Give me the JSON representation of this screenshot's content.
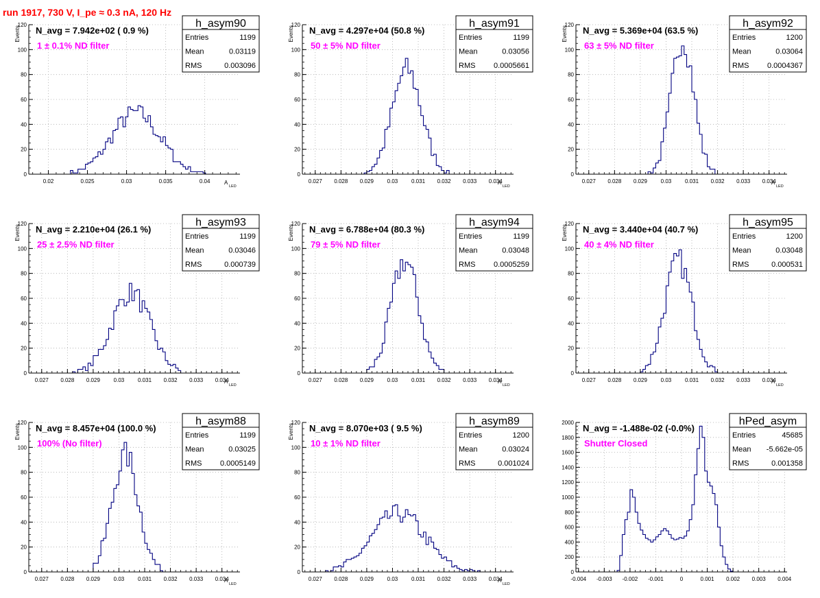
{
  "header": {
    "title": "run 1917,   730 V, I_pe ≈ 0.3 nA, 120 Hz"
  },
  "colors": {
    "title": "#ff0000",
    "annotation": "#ff00ff",
    "histogram": "#000080",
    "grid": "#aaaaaa"
  },
  "stats_labels": {
    "entries": "Entries",
    "mean": "Mean",
    "rms": "RMS"
  },
  "chart_data": [
    {
      "type": "bar",
      "name": "h_asym90",
      "navg_label": "N_avg = 7.942e+02 ( 0.9 %)",
      "annotation": "1 ± 0.1% ND filter",
      "stats": {
        "entries": "1199",
        "mean": "0.03119",
        "rms": "0.003096"
      },
      "ylabel": "Events",
      "xlabel": "A",
      "xlabel_sub": "LED",
      "xlim": [
        0.0175,
        0.0445
      ],
      "ylim": [
        0,
        120
      ],
      "xticks": [
        0.02,
        0.025,
        0.03,
        0.035,
        0.04
      ],
      "xtick_labels": [
        "0.02",
        "0.025",
        "0.03",
        "0.035",
        "0.04"
      ],
      "yticks": [
        0,
        20,
        40,
        60,
        80,
        100,
        120
      ],
      "ytick_labels": [
        "0",
        "20",
        "40",
        "60",
        "80",
        "100",
        "120"
      ],
      "grid": true,
      "hist": {
        "mean": 0.03119,
        "sigma": 0.0031,
        "entries": 1199,
        "bin_width": 0.00032,
        "lo": 0.0225,
        "hi": 0.0405
      }
    },
    {
      "type": "bar",
      "name": "h_asym91",
      "navg_label": "N_avg = 4.297e+04 (50.8 %)",
      "annotation": "50 ± 5% ND filter",
      "stats": {
        "entries": "1199",
        "mean": "0.03056",
        "rms": "0.0005661"
      },
      "ylabel": "Events",
      "xlabel": "A",
      "xlabel_sub": "LED",
      "xlim": [
        0.0265,
        0.0347
      ],
      "ylim": [
        0,
        120
      ],
      "xticks": [
        0.027,
        0.028,
        0.029,
        0.03,
        0.031,
        0.032,
        0.033,
        0.034
      ],
      "xtick_labels": [
        "0.027",
        "0.028",
        "0.029",
        "0.03",
        "0.031",
        "0.032",
        "0.033",
        "0.034"
      ],
      "yticks": [
        0,
        20,
        40,
        60,
        80,
        100,
        120
      ],
      "ytick_labels": [
        "0",
        "20",
        "40",
        "60",
        "80",
        "100",
        "120"
      ],
      "grid": true,
      "hist": {
        "mean": 0.03056,
        "sigma": 0.00057,
        "entries": 1199,
        "bin_width": 0.0001,
        "lo": 0.0289,
        "hi": 0.0322
      }
    },
    {
      "type": "bar",
      "name": "h_asym92",
      "navg_label": "N_avg = 5.369e+04 (63.5 %)",
      "annotation": "63 ± 5% ND filter",
      "stats": {
        "entries": "1200",
        "mean": "0.03064",
        "rms": "0.0004367"
      },
      "ylabel": "Events",
      "xlabel": "A",
      "xlabel_sub": "LED",
      "xlim": [
        0.0265,
        0.0347
      ],
      "ylim": [
        0,
        120
      ],
      "xticks": [
        0.027,
        0.028,
        0.029,
        0.03,
        0.031,
        0.032,
        0.033,
        0.034
      ],
      "xtick_labels": [
        "0.027",
        "0.028",
        "0.029",
        "0.03",
        "0.031",
        "0.032",
        "0.033",
        "0.034"
      ],
      "yticks": [
        0,
        20,
        40,
        60,
        80,
        100,
        120
      ],
      "ytick_labels": [
        "0",
        "20",
        "40",
        "60",
        "80",
        "100",
        "120"
      ],
      "grid": true,
      "hist": {
        "mean": 0.03064,
        "sigma": 0.00044,
        "entries": 1200,
        "bin_width": 0.0001,
        "lo": 0.0292,
        "hi": 0.032
      }
    },
    {
      "type": "bar",
      "name": "h_asym93",
      "navg_label": "N_avg = 2.210e+04 (26.1 %)",
      "annotation": "25 ± 2.5% ND filter",
      "stats": {
        "entries": "1199",
        "mean": "0.03046",
        "rms": "0.000739"
      },
      "ylabel": "Events",
      "xlabel": "A",
      "xlabel_sub": "LED",
      "xlim": [
        0.0265,
        0.0347
      ],
      "ylim": [
        0,
        120
      ],
      "xticks": [
        0.027,
        0.028,
        0.029,
        0.03,
        0.031,
        0.032,
        0.033,
        0.034
      ],
      "xtick_labels": [
        "0.027",
        "0.028",
        "0.029",
        "0.03",
        "0.031",
        "0.032",
        "0.033",
        "0.034"
      ],
      "yticks": [
        0,
        20,
        40,
        60,
        80,
        100,
        120
      ],
      "ytick_labels": [
        "0",
        "20",
        "40",
        "60",
        "80",
        "100",
        "120"
      ],
      "grid": true,
      "hist": {
        "mean": 0.03046,
        "sigma": 0.00074,
        "entries": 1199,
        "bin_width": 0.0001,
        "lo": 0.0282,
        "hi": 0.0324
      }
    },
    {
      "type": "bar",
      "name": "h_asym94",
      "navg_label": "N_avg = 6.788e+04 (80.3 %)",
      "annotation": "79 ± 5% ND filter",
      "stats": {
        "entries": "1199",
        "mean": "0.03048",
        "rms": "0.0005259"
      },
      "ylabel": "Events",
      "xlabel": "A",
      "xlabel_sub": "LED",
      "xlim": [
        0.0265,
        0.0347
      ],
      "ylim": [
        0,
        120
      ],
      "xticks": [
        0.027,
        0.028,
        0.029,
        0.03,
        0.031,
        0.032,
        0.033,
        0.034
      ],
      "xtick_labels": [
        "0.027",
        "0.028",
        "0.029",
        "0.03",
        "0.031",
        "0.032",
        "0.033",
        "0.034"
      ],
      "yticks": [
        0,
        20,
        40,
        60,
        80,
        100,
        120
      ],
      "ytick_labels": [
        "0",
        "20",
        "40",
        "60",
        "80",
        "100",
        "120"
      ],
      "grid": true,
      "hist": {
        "mean": 0.03048,
        "sigma": 0.00053,
        "entries": 1199,
        "bin_width": 0.0001,
        "lo": 0.029,
        "hi": 0.032
      }
    },
    {
      "type": "bar",
      "name": "h_asym95",
      "navg_label": "N_avg = 3.440e+04 (40.7 %)",
      "annotation": "40 ± 4% ND filter",
      "stats": {
        "entries": "1200",
        "mean": "0.03048",
        "rms": "0.000531"
      },
      "ylabel": "Events",
      "xlabel": "A",
      "xlabel_sub": "LED",
      "xlim": [
        0.0265,
        0.0347
      ],
      "ylim": [
        0,
        120
      ],
      "xticks": [
        0.027,
        0.028,
        0.029,
        0.03,
        0.031,
        0.032,
        0.033,
        0.034
      ],
      "xtick_labels": [
        "0.027",
        "0.028",
        "0.029",
        "0.03",
        "0.031",
        "0.032",
        "0.033",
        "0.034"
      ],
      "yticks": [
        0,
        20,
        40,
        60,
        80,
        100,
        120
      ],
      "ytick_labels": [
        "0",
        "20",
        "40",
        "60",
        "80",
        "100",
        "120"
      ],
      "grid": true,
      "hist": {
        "mean": 0.03048,
        "sigma": 0.00053,
        "entries": 1200,
        "bin_width": 0.0001,
        "lo": 0.029,
        "hi": 0.0322
      }
    },
    {
      "type": "bar",
      "name": "h_asym88",
      "navg_label": "N_avg = 8.457e+04 (100.0 %)",
      "annotation": "100% (No filter)",
      "stats": {
        "entries": "1199",
        "mean": "0.03025",
        "rms": "0.0005149"
      },
      "ylabel": "Events",
      "xlabel": "A",
      "xlabel_sub": "LED",
      "xlim": [
        0.0265,
        0.0347
      ],
      "ylim": [
        0,
        120
      ],
      "xticks": [
        0.027,
        0.028,
        0.029,
        0.03,
        0.031,
        0.032,
        0.033,
        0.034
      ],
      "xtick_labels": [
        "0.027",
        "0.028",
        "0.029",
        "0.03",
        "0.031",
        "0.032",
        "0.033",
        "0.034"
      ],
      "yticks": [
        0,
        20,
        40,
        60,
        80,
        100,
        120
      ],
      "ytick_labels": [
        "0",
        "20",
        "40",
        "60",
        "80",
        "100",
        "120"
      ],
      "grid": true,
      "hist": {
        "mean": 0.03025,
        "sigma": 0.00051,
        "entries": 1199,
        "bin_width": 0.0001,
        "lo": 0.029,
        "hi": 0.0317
      }
    },
    {
      "type": "bar",
      "name": "h_asym89",
      "navg_label": "N_avg = 8.070e+03 ( 9.5 %)",
      "annotation": "10 ± 1% ND filter",
      "stats": {
        "entries": "1200",
        "mean": "0.03024",
        "rms": "0.001024"
      },
      "ylabel": "Events",
      "xlabel": "A",
      "xlabel_sub": "LED",
      "xlim": [
        0.0265,
        0.0347
      ],
      "ylim": [
        0,
        120
      ],
      "xticks": [
        0.027,
        0.028,
        0.029,
        0.03,
        0.031,
        0.032,
        0.033,
        0.034
      ],
      "xtick_labels": [
        "0.027",
        "0.028",
        "0.029",
        "0.03",
        "0.031",
        "0.032",
        "0.033",
        "0.034"
      ],
      "yticks": [
        0,
        20,
        40,
        60,
        80,
        100,
        120
      ],
      "ytick_labels": [
        "0",
        "20",
        "40",
        "60",
        "80",
        "100",
        "120"
      ],
      "grid": true,
      "hist": {
        "mean": 0.03024,
        "sigma": 0.00102,
        "entries": 1200,
        "bin_width": 0.0001,
        "lo": 0.027,
        "hi": 0.0334
      }
    },
    {
      "type": "bar",
      "name": "hPed_asym",
      "navg_label": "N_avg = -1.488e-02 (-0.0%)",
      "annotation": "Shutter Closed",
      "stats": {
        "entries": "45685",
        "mean": "-5.662e-05",
        "rms": "0.001358"
      },
      "ylabel": "",
      "xlabel": "",
      "xlabel_sub": "",
      "xlim": [
        -0.0041,
        0.0041
      ],
      "ylim": [
        0,
        2000
      ],
      "xticks": [
        -0.004,
        -0.003,
        -0.002,
        -0.001,
        0,
        0.001,
        0.002,
        0.003,
        0.004
      ],
      "xtick_labels": [
        "-0.004",
        "-0.003",
        "-0.002",
        "-0.001",
        "0",
        "0.001",
        "0.002",
        "0.003",
        "0.004"
      ],
      "yticks": [
        0,
        200,
        400,
        600,
        800,
        1000,
        1200,
        1400,
        1600,
        1800,
        2000
      ],
      "ytick_labels": [
        "0",
        "200",
        "400",
        "600",
        "800",
        "1000",
        "1200",
        "1400",
        "1600",
        "1800",
        "2000"
      ],
      "grid": true,
      "bin_width": 0.0001,
      "bin_lo": -0.0025,
      "values": [
        20,
        220,
        500,
        700,
        800,
        1100,
        1000,
        800,
        650,
        560,
        500,
        450,
        430,
        400,
        430,
        470,
        500,
        550,
        580,
        550,
        500,
        450,
        430,
        440,
        460,
        450,
        480,
        550,
        700,
        900,
        1300,
        1650,
        1950,
        1800,
        1350,
        1200,
        1150,
        1050,
        900,
        600,
        350,
        200,
        100,
        40,
        10
      ]
    }
  ]
}
